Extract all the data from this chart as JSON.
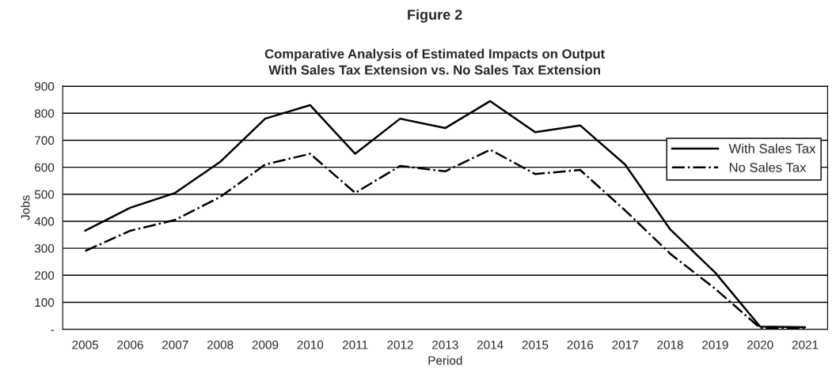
{
  "chart_data": {
    "type": "line",
    "title": "Figure 2",
    "subtitle": "Comparative Analysis of Estimated Impacts on Output\nWith Sales Tax Extension vs. No Sales Tax Extension",
    "xlabel": "Period",
    "ylabel": "Jobs",
    "categories": [
      "2005",
      "2006",
      "2007",
      "2008",
      "2009",
      "2010",
      "2011",
      "2012",
      "2013",
      "2014",
      "2015",
      "2016",
      "2017",
      "2018",
      "2019",
      "2020",
      "2021"
    ],
    "series": [
      {
        "name": "With Sales Tax",
        "color": "#000000",
        "line_style": "solid",
        "values": [
          365,
          450,
          505,
          620,
          780,
          830,
          650,
          780,
          745,
          845,
          730,
          755,
          610,
          370,
          210,
          10,
          8
        ]
      },
      {
        "name": "No Sales Tax",
        "color": "#000000",
        "line_style": "dashdot",
        "values": [
          290,
          365,
          405,
          490,
          610,
          650,
          505,
          605,
          585,
          665,
          575,
          590,
          440,
          280,
          150,
          5,
          2
        ]
      }
    ],
    "ylim": [
      0,
      900
    ],
    "yticks": [
      {
        "value": 0,
        "label": "-"
      },
      100,
      200,
      300,
      400,
      500,
      600,
      700,
      800,
      900
    ],
    "grid": "y",
    "legend": "right",
    "marker": "none"
  }
}
